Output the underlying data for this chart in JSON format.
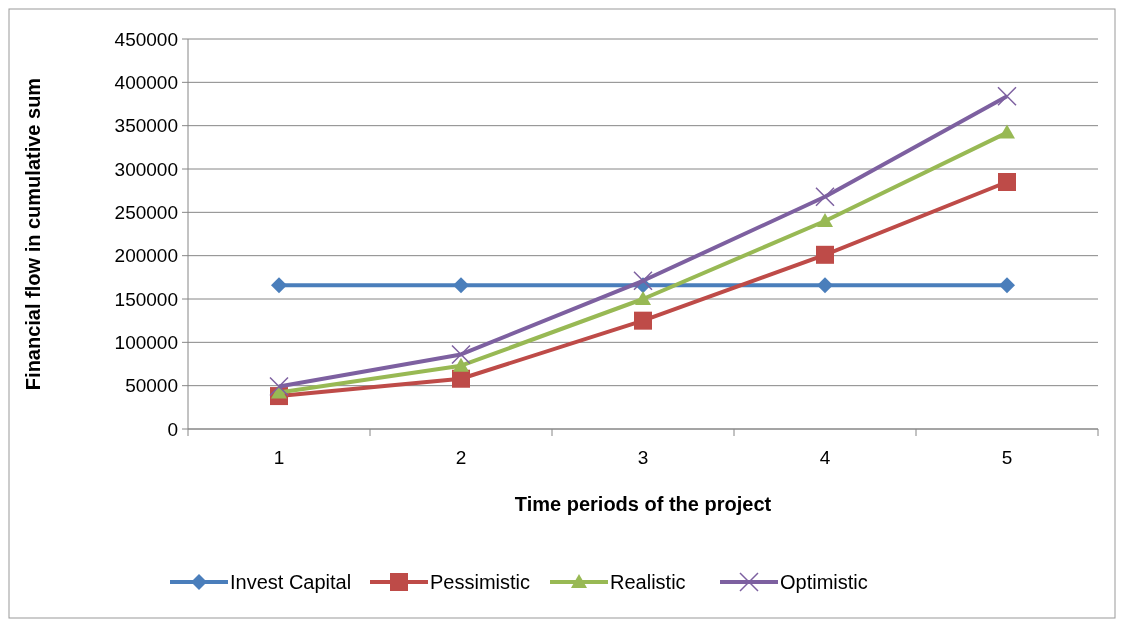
{
  "chart_data": {
    "type": "line",
    "xlabel": "Time periods of the project",
    "ylabel": "Financial flow in cumulative sum",
    "categories": [
      "1",
      "2",
      "3",
      "4",
      "5"
    ],
    "ylim": [
      0,
      450000
    ],
    "yticks": [
      0,
      50000,
      100000,
      150000,
      200000,
      250000,
      300000,
      350000,
      400000,
      450000
    ],
    "grid": "y",
    "legend": "bottom",
    "series": [
      {
        "name": "Invest Capital",
        "color": "#4a7ebb",
        "marker": "diamond",
        "values": [
          166000,
          166000,
          166000,
          166000,
          166000
        ]
      },
      {
        "name": "Pessimistic",
        "color": "#be4b48",
        "marker": "square",
        "values": [
          38000,
          58000,
          125000,
          201000,
          285000
        ]
      },
      {
        "name": "Realistic",
        "color": "#98b954",
        "marker": "triangle",
        "values": [
          42000,
          73000,
          150000,
          240000,
          342000
        ]
      },
      {
        "name": "Optimistic",
        "color": "#7d60a0",
        "marker": "cross",
        "values": [
          49000,
          86000,
          171000,
          268000,
          384000
        ]
      }
    ]
  }
}
